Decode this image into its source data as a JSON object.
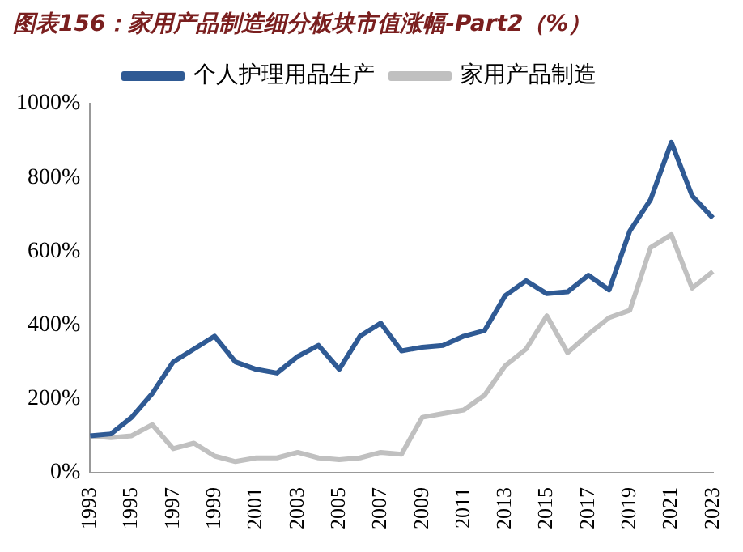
{
  "chart_data": {
    "type": "line",
    "title": "图表156：家用产品制造细分板块市值涨幅-Part2（%）",
    "categories": [
      "1993",
      null,
      "1995",
      null,
      "1997",
      null,
      "1999",
      null,
      "2001",
      null,
      "2003",
      null,
      "2005",
      null,
      "2007",
      null,
      "2009",
      null,
      "2011",
      null,
      "2013",
      null,
      "2015",
      null,
      "2017",
      null,
      "2019",
      null,
      "2021",
      null,
      "2023"
    ],
    "series": [
      {
        "name": "个人护理用品生产",
        "color": "#2f5a94",
        "values": [
          100,
          105,
          150,
          215,
          300,
          335,
          370,
          300,
          280,
          270,
          315,
          345,
          280,
          370,
          405,
          330,
          340,
          345,
          370,
          385,
          480,
          520,
          485,
          490,
          535,
          495,
          655,
          740,
          895,
          750,
          690
        ]
      },
      {
        "name": "家用产品制造",
        "color": "#c0c0c0",
        "values": [
          100,
          95,
          100,
          130,
          65,
          80,
          45,
          30,
          40,
          40,
          55,
          40,
          35,
          40,
          55,
          50,
          150,
          160,
          170,
          210,
          290,
          335,
          425,
          325,
          375,
          420,
          440,
          610,
          645,
          500,
          545
        ]
      }
    ],
    "ylim": [
      0,
      1000
    ],
    "yticks": [
      {
        "value": 0,
        "label": "0%"
      },
      {
        "value": 200,
        "label": "200%"
      },
      {
        "value": 400,
        "label": "400%"
      },
      {
        "value": 600,
        "label": "600%"
      },
      {
        "value": 800,
        "label": "800%"
      },
      {
        "value": 1000,
        "label": "1000%"
      }
    ],
    "legend": "top",
    "grid": false,
    "marker": "none",
    "line_style": "solid"
  }
}
